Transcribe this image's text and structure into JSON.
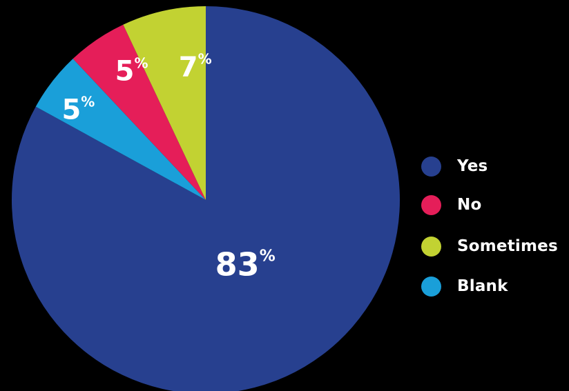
{
  "chart_data": {
    "type": "pie",
    "start": "12 o'clock",
    "direction": "clockwise",
    "unit_symbol": "%",
    "slices": [
      {
        "label": "Yes",
        "value": 83,
        "color": "#27408F"
      },
      {
        "label": "Blank",
        "value": 5,
        "color": "#1A9FD9"
      },
      {
        "label": "No",
        "value": 5,
        "color": "#E51E59"
      },
      {
        "label": "Sometimes",
        "value": 7,
        "color": "#C2D232"
      }
    ],
    "legend": {
      "placement": "right",
      "entries": [
        {
          "label": "Yes",
          "color": "#27408F"
        },
        {
          "label": "No",
          "color": "#E51E59"
        },
        {
          "label": "Sometimes",
          "color": "#C2D232"
        },
        {
          "label": "Blank",
          "color": "#1A9FD9"
        }
      ]
    }
  }
}
